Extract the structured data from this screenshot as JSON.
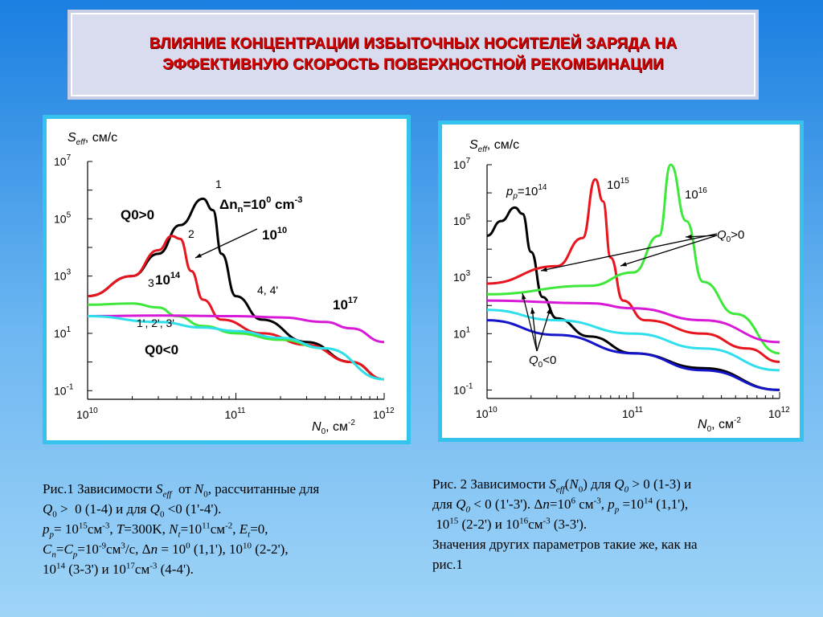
{
  "title": {
    "line1": "ВЛИЯНИЕ КОНЦЕНТРАЦИИ ИЗБЫТОЧНЫХ НОСИТЕЛЕЙ ЗАРЯДА НА",
    "line2": "ЭФФЕКТИВНУЮ СКОРОСТЬ ПОВЕРХНОСТНОЙ РЕКОМБИНАЦИИ"
  },
  "colors": {
    "black": "#000000",
    "red": "#e8141e",
    "green": "#3ee83a",
    "magenta": "#d81ad8",
    "cyan": "#2fe0ec",
    "blue": "#1414c8"
  },
  "chart_data": [
    {
      "type": "line",
      "xscale": "log",
      "yscale": "log",
      "xlim": [
        10000000000.0,
        1000000000000.0
      ],
      "ylim": [
        0.05,
        10000000.0
      ],
      "ylabel_main": "S",
      "ylabel_sub": "eff",
      "ylabel_unit": ", см/с",
      "xlabel_main": "N",
      "xlabel_sub": "0",
      "xlabel_unit": ", см",
      "xlabel_exp": "-2",
      "xticks": [
        {
          "base": "10",
          "exp": "10"
        },
        {
          "base": "10",
          "exp": "11"
        },
        {
          "base": "10",
          "exp": "12"
        }
      ],
      "yticks": [
        {
          "base": "10",
          "exp": "7",
          "v": 10000000.0
        },
        {
          "base": "10",
          "exp": "5",
          "v": 100000.0
        },
        {
          "base": "10",
          "exp": "3",
          "v": 1000.0
        },
        {
          "base": "10",
          "exp": "1",
          "v": 10
        },
        {
          "base": "10",
          "exp": "-1",
          "v": 0.1
        }
      ],
      "series": [
        {
          "color": "#000000",
          "points": [
            [
              10000000000.0,
              200
            ],
            [
              20000000000.0,
              1000
            ],
            [
              30000000000.0,
              6000
            ],
            [
              42000000000.0,
              60000
            ],
            [
              60000000000.0,
              500000
            ],
            [
              70000000000.0,
              200000
            ],
            [
              80000000000.0,
              6000
            ],
            [
              100000000000.0,
              200
            ],
            [
              150000000000.0,
              30
            ],
            [
              300000000000.0,
              5
            ],
            [
              600000000000.0,
              1
            ],
            [
              1000000000000.0,
              0.25
            ]
          ]
        },
        {
          "color": "#e8141e",
          "points": [
            [
              10000000000.0,
              200
            ],
            [
              20000000000.0,
              1000
            ],
            [
              30000000000.0,
              8000
            ],
            [
              37000000000.0,
              25000
            ],
            [
              42000000000.0,
              20000
            ],
            [
              50000000000.0,
              1500
            ],
            [
              60000000000.0,
              150
            ],
            [
              80000000000.0,
              30
            ],
            [
              150000000000.0,
              10
            ],
            [
              300000000000.0,
              4
            ],
            [
              600000000000.0,
              1
            ],
            [
              1000000000000.0,
              0.25
            ]
          ]
        },
        {
          "color": "#3ee83a",
          "points": [
            [
              10000000000.0,
              100
            ],
            [
              20000000000.0,
              110
            ],
            [
              30000000000.0,
              80
            ],
            [
              40000000000.0,
              40
            ],
            [
              60000000000.0,
              18
            ],
            [
              100000000000.0,
              10
            ],
            [
              200000000000.0,
              6
            ],
            [
              400000000000.0,
              3
            ],
            [
              1000000000000.0,
              0.25
            ]
          ]
        },
        {
          "color": "#d81ad8",
          "points": [
            [
              10000000000.0,
              40
            ],
            [
              30000000000.0,
              42
            ],
            [
              100000000000.0,
              40
            ],
            [
              200000000000.0,
              36
            ],
            [
              400000000000.0,
              25
            ],
            [
              600000000000.0,
              15
            ],
            [
              1000000000000.0,
              5
            ]
          ]
        },
        {
          "color": "#2fe0ec",
          "points": [
            [
              10000000000.0,
              40
            ],
            [
              30000000000.0,
              25
            ],
            [
              60000000000.0,
              16
            ],
            [
              100000000000.0,
              12
            ],
            [
              200000000000.0,
              7
            ],
            [
              400000000000.0,
              3
            ],
            [
              1000000000000.0,
              0.25
            ]
          ]
        }
      ],
      "annotations": {
        "q_pos": "Q0>0",
        "q_neg": "Q0<0",
        "dn_prefix": "Δn",
        "dn_sub": "n",
        "dn_mid": "=10",
        "dn_exp": "0",
        "dn_unit": " cm",
        "dn_unit_exp": "-3",
        "l1": "1",
        "l2": "2",
        "l3": "3",
        "v1010_base": "10",
        "v1010_exp": "10",
        "v1014_base": "10",
        "v1014_exp": "14",
        "v1017_base": "10",
        "v1017_exp": "17",
        "l44": "4, 4'",
        "lprime": "1', 2', 3'"
      }
    },
    {
      "type": "line",
      "xscale": "log",
      "yscale": "log",
      "xlim": [
        10000000000.0,
        1000000000000.0
      ],
      "ylim": [
        0.05,
        10000000.0
      ],
      "ylabel_main": "S",
      "ylabel_sub": "eff",
      "ylabel_unit": ", см/с",
      "xlabel_main": "N",
      "xlabel_sub": "0",
      "xlabel_unit": ", см",
      "xlabel_exp": "-2",
      "xticks": [
        {
          "base": "10",
          "exp": "10"
        },
        {
          "base": "10",
          "exp": "11"
        },
        {
          "base": "10",
          "exp": "12"
        }
      ],
      "yticks": [
        {
          "base": "10",
          "exp": "7",
          "v": 10000000.0
        },
        {
          "base": "10",
          "exp": "5",
          "v": 100000.0
        },
        {
          "base": "10",
          "exp": "3",
          "v": 1000.0
        },
        {
          "base": "10",
          "exp": "1",
          "v": 10
        },
        {
          "base": "10",
          "exp": "-1",
          "v": 0.1
        }
      ],
      "series": [
        {
          "color": "#000000",
          "points": [
            [
              10000000000.0,
              30000
            ],
            [
              12500000000.0,
              100000
            ],
            [
              15500000000.0,
              300000
            ],
            [
              17500000000.0,
              180000
            ],
            [
              20000000000.0,
              8000
            ],
            [
              24000000000.0,
              200
            ],
            [
              30000000000.0,
              35
            ],
            [
              50000000000.0,
              8
            ],
            [
              100000000000.0,
              2
            ],
            [
              300000000000.0,
              0.6
            ],
            [
              1000000000000.0,
              0.1
            ]
          ]
        },
        {
          "color": "#e8141e",
          "points": [
            [
              10000000000.0,
              600
            ],
            [
              30000000000.0,
              2500
            ],
            [
              45000000000.0,
              25000
            ],
            [
              55000000000.0,
              3000000
            ],
            [
              62000000000.0,
              500000
            ],
            [
              70000000000.0,
              5000
            ],
            [
              85000000000.0,
              150
            ],
            [
              120000000000.0,
              30
            ],
            [
              300000000000.0,
              10
            ],
            [
              600000000000.0,
              3
            ],
            [
              1000000000000.0,
              1
            ]
          ]
        },
        {
          "color": "#3ee83a",
          "points": [
            [
              10000000000.0,
              250
            ],
            [
              50000000000.0,
              500
            ],
            [
              100000000000.0,
              1500
            ],
            [
              150000000000.0,
              30000
            ],
            [
              180000000000.0,
              10000000
            ],
            [
              230000000000.0,
              100000
            ],
            [
              300000000000.0,
              700
            ],
            [
              500000000000.0,
              50
            ],
            [
              1000000000000.0,
              2
            ]
          ]
        },
        {
          "color": "#d81ad8",
          "points": [
            [
              10000000000.0,
              150
            ],
            [
              50000000000.0,
              120
            ],
            [
              100000000000.0,
              80
            ],
            [
              300000000000.0,
              30
            ],
            [
              1000000000000.0,
              5
            ]
          ]
        },
        {
          "color": "#2fe0ec",
          "points": [
            [
              10000000000.0,
              70
            ],
            [
              30000000000.0,
              30
            ],
            [
              100000000000.0,
              10
            ],
            [
              300000000000.0,
              3
            ],
            [
              1000000000000.0,
              0.5
            ]
          ]
        },
        {
          "color": "#1414c8",
          "points": [
            [
              10000000000.0,
              30
            ],
            [
              30000000000.0,
              9
            ],
            [
              100000000000.0,
              2
            ],
            [
              300000000000.0,
              0.5
            ],
            [
              1000000000000.0,
              0.1
            ]
          ]
        }
      ],
      "annotations": {
        "pp_main": "p",
        "pp_sub": "p",
        "pp_mid": "=10",
        "pp_exp": "14",
        "v1015_base": "10",
        "v1015_exp": "15",
        "v1016_base": "10",
        "v1016_exp": "16",
        "q_pos_main": "Q",
        "q_pos_sub": "0",
        "q_pos_rest": ">0",
        "q_neg_main": "Q",
        "q_neg_sub": "0",
        "q_neg_rest": "<0"
      }
    }
  ]
}
